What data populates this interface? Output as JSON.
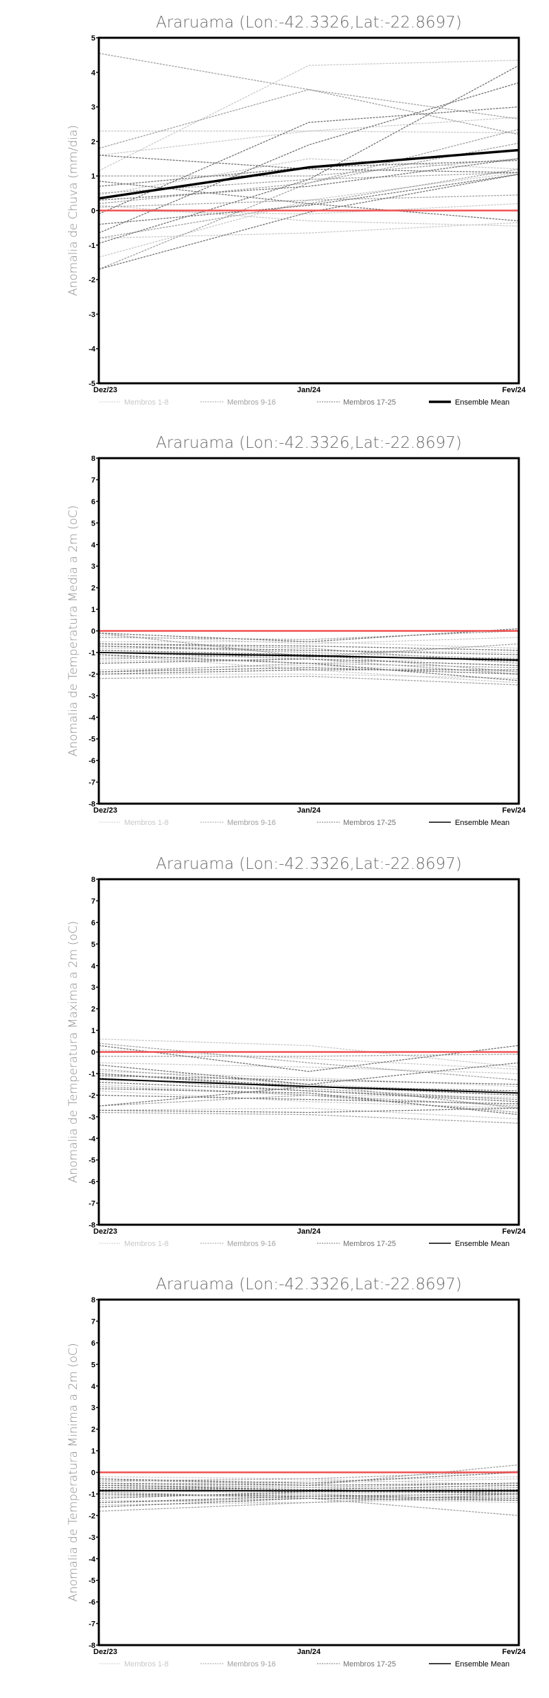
{
  "legend": {
    "labels": [
      "Membros 1-8",
      "Membros 9-16",
      "Membros 17-25",
      "Ensemble Mean"
    ],
    "colors": [
      "#c8c8c8",
      "#a0a0a0",
      "#707070",
      "#000000"
    ]
  },
  "reference_color": "#f05050",
  "chart_data": [
    {
      "type": "line",
      "title": "Araruama (Lon:-42.3326,Lat:-22.8697)",
      "ylabel": "Anomalia de Chuva (mm/dia)",
      "categories": [
        "Dez/23",
        "Jan/24",
        "Fev/24"
      ],
      "ylim": [
        -5,
        5
      ],
      "yticks": [
        -5,
        -4,
        -3,
        -2,
        -1,
        0,
        1,
        2,
        3,
        4,
        5
      ],
      "ensemble_mean": [
        0.35,
        1.25,
        1.75
      ],
      "members": [
        [
          1.15,
          4.2,
          4.35
        ],
        [
          2.3,
          2.3,
          2.25
        ],
        [
          1.6,
          2.3,
          2.7
        ],
        [
          0.45,
          1.5,
          1.2
        ],
        [
          0.15,
          -0.3,
          -0.45
        ],
        [
          -0.8,
          -0.65,
          -0.35
        ],
        [
          -1.35,
          0.3,
          1.1
        ],
        [
          0.0,
          -0.1,
          0.2
        ],
        [
          4.55,
          3.5,
          2.2
        ],
        [
          1.8,
          3.5,
          2.65
        ],
        [
          -1.7,
          0.8,
          2.35
        ],
        [
          0.2,
          0.8,
          1.95
        ],
        [
          1.0,
          1.0,
          1.5
        ],
        [
          0.5,
          0.9,
          1.1
        ],
        [
          -0.8,
          0.2,
          1.2
        ],
        [
          0.1,
          0.3,
          0.45
        ],
        [
          -0.1,
          2.55,
          3.0
        ],
        [
          -0.65,
          1.9,
          3.7
        ],
        [
          -0.95,
          0.9,
          4.2
        ],
        [
          -1.7,
          -0.05,
          1.05
        ],
        [
          0.7,
          1.25,
          1.45
        ],
        [
          1.6,
          1.2,
          1.1
        ],
        [
          0.85,
          0.2,
          -0.3
        ],
        [
          -0.4,
          0.15,
          1.05
        ],
        [
          0.3,
          0.7,
          1.5
        ]
      ]
    },
    {
      "type": "line",
      "title": "Araruama (Lon:-42.3326,Lat:-22.8697)",
      "ylabel": "Anomalia de Temperatura Media a 2m (oC)",
      "categories": [
        "Dez/23",
        "Jan/24",
        "Fev/24"
      ],
      "ylim": [
        -8,
        8
      ],
      "yticks": [
        -8,
        -7,
        -6,
        -5,
        -4,
        -3,
        -2,
        -1,
        0,
        1,
        2,
        3,
        4,
        5,
        6,
        7,
        8
      ],
      "ensemble_mean": [
        -1.0,
        -1.15,
        -1.35
      ],
      "members": [
        [
          -0.2,
          -0.6,
          -0.3
        ],
        [
          -0.5,
          -0.5,
          -0.8
        ],
        [
          -1.2,
          -1.5,
          -1.2
        ],
        [
          -1.8,
          -1.6,
          -1.9
        ],
        [
          -0.8,
          -0.9,
          -1.0
        ],
        [
          -1.4,
          -1.3,
          -1.6
        ],
        [
          -2.0,
          -2.0,
          -2.2
        ],
        [
          -1.1,
          -1.8,
          -2.4
        ],
        [
          -0.1,
          -1.2,
          -0.6
        ],
        [
          -0.6,
          -0.8,
          -1.5
        ],
        [
          -1.0,
          -1.3,
          -2.0
        ],
        [
          -1.9,
          -1.5,
          -1.7
        ],
        [
          -2.2,
          -2.1,
          -2.5
        ],
        [
          -0.3,
          -0.4,
          0.0
        ],
        [
          -1.3,
          -1.1,
          -1.9
        ],
        [
          -0.7,
          -1.0,
          -1.3
        ],
        [
          -0.1,
          -0.5,
          0.1
        ],
        [
          -0.6,
          -0.7,
          -0.9
        ],
        [
          -1.0,
          -1.2,
          -1.3
        ],
        [
          -1.9,
          -1.7,
          -2.0
        ],
        [
          -1.1,
          -1.5,
          -2.3
        ],
        [
          -0.7,
          -0.9,
          -1.1
        ],
        [
          -1.5,
          -1.3,
          -1.6
        ],
        [
          -2.0,
          -1.8,
          -1.8
        ],
        [
          -0.9,
          -1.1,
          -1.4
        ]
      ]
    },
    {
      "type": "line",
      "title": "Araruama (Lon:-42.3326,Lat:-22.8697)",
      "ylabel": "Anomalia de Temperatura Maxima a 2m (oC)",
      "categories": [
        "Dez/23",
        "Jan/24",
        "Fev/24"
      ],
      "ylim": [
        -8,
        8
      ],
      "yticks": [
        -8,
        -7,
        -6,
        -5,
        -4,
        -3,
        -2,
        -1,
        0,
        1,
        2,
        3,
        4,
        5,
        6,
        7,
        8
      ],
      "ensemble_mean": [
        -1.25,
        -1.6,
        -1.9
      ],
      "members": [
        [
          0.6,
          0.3,
          -0.7
        ],
        [
          0.1,
          -0.3,
          -0.8
        ],
        [
          -0.5,
          -0.7,
          -1.0
        ],
        [
          -1.3,
          -1.5,
          -1.9
        ],
        [
          -1.8,
          -2.3,
          -2.6
        ],
        [
          -2.7,
          -2.6,
          -3.1
        ],
        [
          -0.9,
          -1.2,
          -1.6
        ],
        [
          -1.5,
          -2.0,
          -2.1
        ],
        [
          0.4,
          -0.5,
          -1.3
        ],
        [
          -0.8,
          -1.5,
          -2.6
        ],
        [
          -1.0,
          -1.7,
          -2.2
        ],
        [
          -2.5,
          -2.0,
          -2.5
        ],
        [
          -2.8,
          -2.9,
          -3.3
        ],
        [
          -0.2,
          -0.2,
          -0.1
        ],
        [
          -1.2,
          -1.8,
          -2.2
        ],
        [
          -1.6,
          -2.0,
          -2.8
        ],
        [
          0.3,
          -0.9,
          0.3
        ],
        [
          -0.6,
          -1.5,
          -0.5
        ],
        [
          -1.0,
          -1.6,
          -2.0
        ],
        [
          -2.5,
          -1.6,
          -1.8
        ],
        [
          -2.7,
          -2.8,
          -2.6
        ],
        [
          -1.4,
          -1.8,
          -2.3
        ],
        [
          -1.1,
          -1.3,
          -1.5
        ],
        [
          -2.0,
          -2.2,
          -2.4
        ],
        [
          -1.7,
          -1.9,
          -2.9
        ]
      ]
    },
    {
      "type": "line",
      "title": "Araruama (Lon:-42.3326,Lat:-22.8697)",
      "ylabel": "Anomalia de Temperatura Minima a 2m (oC)",
      "categories": [
        "Dez/23",
        "Jan/24",
        "Fev/24"
      ],
      "ylim": [
        -8,
        8
      ],
      "yticks": [
        -8,
        -7,
        -6,
        -5,
        -4,
        -3,
        -2,
        -1,
        0,
        1,
        2,
        3,
        4,
        5,
        6,
        7,
        8
      ],
      "ensemble_mean": [
        -0.85,
        -0.85,
        -0.85
      ],
      "members": [
        [
          -0.2,
          -0.3,
          -0.6
        ],
        [
          -0.4,
          -0.5,
          -0.3
        ],
        [
          -1.0,
          -1.2,
          -1.4
        ],
        [
          -1.3,
          -1.4,
          -1.0
        ],
        [
          -0.6,
          -0.4,
          -0.2
        ],
        [
          -0.8,
          -1.0,
          -0.9
        ],
        [
          -1.5,
          -1.4,
          -1.2
        ],
        [
          -0.5,
          -0.7,
          -0.8
        ],
        [
          -0.3,
          -0.6,
          0.35
        ],
        [
          -0.6,
          -0.7,
          -0.5
        ],
        [
          -0.9,
          -1.2,
          -2.0
        ],
        [
          -1.4,
          -1.2,
          -1.1
        ],
        [
          -1.8,
          -1.4,
          -1.0
        ],
        [
          -0.4,
          -0.3,
          0.05
        ],
        [
          -0.7,
          -0.9,
          -0.7
        ],
        [
          -1.1,
          -1.0,
          -1.3
        ],
        [
          -0.3,
          -0.5,
          0.0
        ],
        [
          -0.5,
          -0.6,
          -0.5
        ],
        [
          -0.7,
          -0.8,
          -0.6
        ],
        [
          -0.8,
          -0.9,
          -0.9
        ],
        [
          -1.2,
          -0.9,
          -0.8
        ],
        [
          -1.6,
          -1.2,
          -1.3
        ],
        [
          -1.4,
          -1.1,
          -1.0
        ],
        [
          -0.6,
          -0.8,
          -1.0
        ],
        [
          -1.0,
          -1.1,
          -1.2
        ]
      ]
    }
  ]
}
